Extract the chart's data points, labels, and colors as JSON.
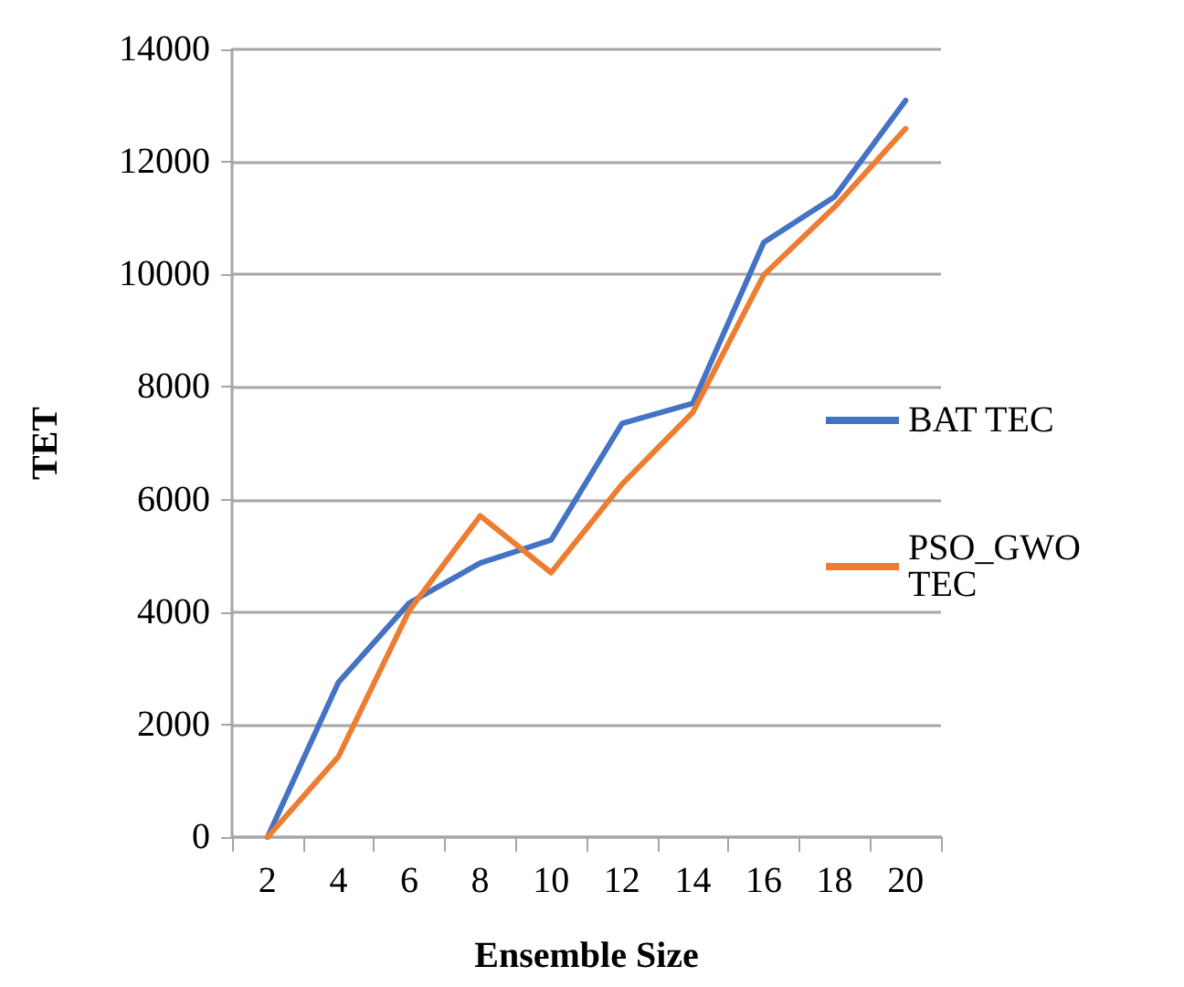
{
  "chart_data": {
    "type": "line",
    "xlabel": "Ensemble Size",
    "ylabel": "TET",
    "categories": [
      "2",
      "4",
      "6",
      "8",
      "10",
      "12",
      "14",
      "16",
      "18",
      "20"
    ],
    "series": [
      {
        "name": "BAT TEC",
        "color": "#4472c4",
        "values": [
          0,
          2750,
          4160,
          4870,
          5280,
          7350,
          7710,
          10570,
          11380,
          13090
        ]
      },
      {
        "name": "PSO_GWO TEC",
        "color": "#ed7d31",
        "values": [
          0,
          1430,
          4030,
          5710,
          4700,
          6270,
          7550,
          9990,
          11200,
          12590
        ]
      }
    ],
    "ylim": [
      0,
      14000
    ],
    "yticks": [
      0,
      2000,
      4000,
      6000,
      8000,
      10000,
      12000,
      14000
    ],
    "grid": "y",
    "legend": "right",
    "marker": "none",
    "line_style": "solid"
  }
}
